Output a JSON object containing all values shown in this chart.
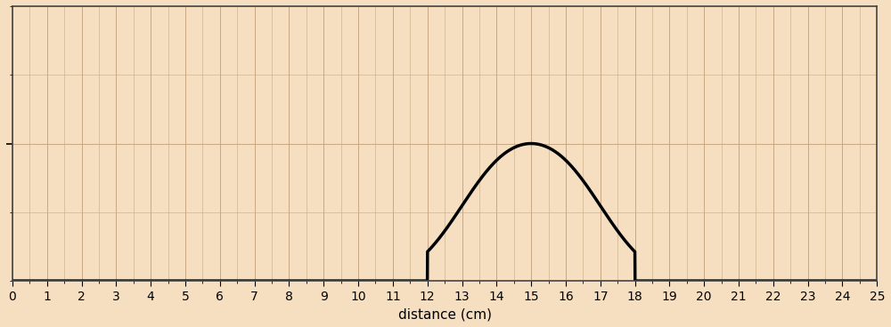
{
  "xlim": [
    0,
    25
  ],
  "ylim": [
    0,
    2.0
  ],
  "ytick_pos": 1.0,
  "xlabel": "distance (cm)",
  "xtick_major": 1,
  "background_color": "#f5dfc0",
  "grid_color": "#c8a882",
  "line_color": "#000000",
  "line_width": 2.5,
  "pulse_start": 12,
  "pulse_end": 18,
  "peak1_x": 14.0,
  "peak2_x": 16.0,
  "dip_x": 15.0,
  "peak_height": 1.0,
  "dip_height": 0.78,
  "sigma_outer": 1.3,
  "sigma_inner": 0.55,
  "grid_major_linewidth": 0.7,
  "grid_minor_linewidth": 0.4,
  "spine_color": "#444444",
  "xlabel_fontsize": 11,
  "xtick_fontsize": 10
}
